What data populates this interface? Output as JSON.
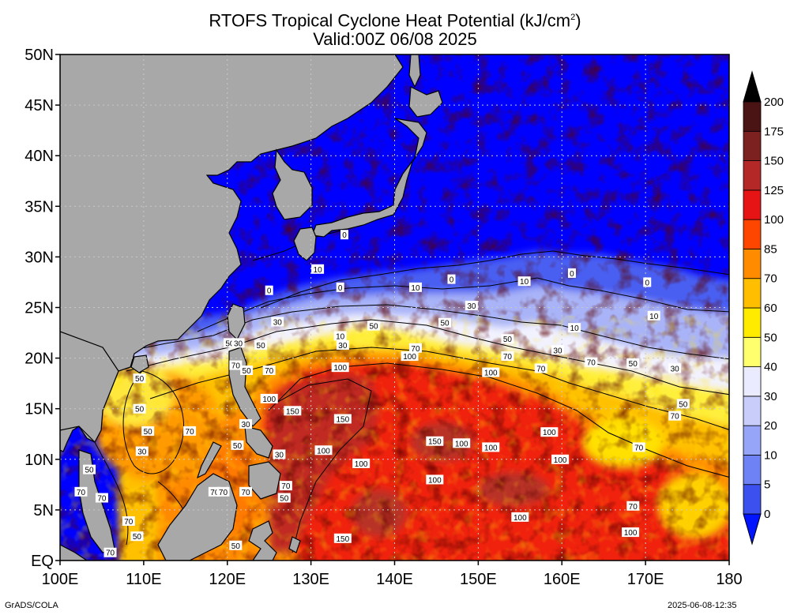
{
  "title": {
    "line1": "RTOFS Tropical Cyclone Heat Potential (kJ/cm",
    "line1_sup": "2",
    "line1_end": ")",
    "line2": "Valid:00Z 06/08 2025"
  },
  "map": {
    "lon_range": [
      100,
      180
    ],
    "lat_range": [
      0,
      50
    ],
    "lon_ticks": [
      "100E",
      "110E",
      "120E",
      "130E",
      "140E",
      "150E",
      "160E",
      "170E",
      "180"
    ],
    "lat_ticks": [
      "EQ",
      "5N",
      "10N",
      "15N",
      "20N",
      "25N",
      "30N",
      "35N",
      "40N",
      "45N",
      "50N"
    ],
    "land_color": "#a8a8a8",
    "grid": "dotted",
    "contour_labels": [
      {
        "text": "0",
        "lon": 134.0,
        "lat": 32.2
      },
      {
        "text": "10",
        "lon": 130.8,
        "lat": 28.8
      },
      {
        "text": "0",
        "lon": 133.5,
        "lat": 27.0
      },
      {
        "text": "10",
        "lon": 142.5,
        "lat": 27.0
      },
      {
        "text": "0",
        "lon": 146.8,
        "lat": 27.8
      },
      {
        "text": "10",
        "lon": 155.5,
        "lat": 27.6
      },
      {
        "text": "0",
        "lon": 161.2,
        "lat": 28.4
      },
      {
        "text": "0",
        "lon": 170.2,
        "lat": 27.5
      },
      {
        "text": "0",
        "lon": 125.0,
        "lat": 26.7
      },
      {
        "text": "30",
        "lon": 149.2,
        "lat": 25.2
      },
      {
        "text": "30",
        "lon": 126.0,
        "lat": 23.6
      },
      {
        "text": "50",
        "lon": 137.5,
        "lat": 23.2
      },
      {
        "text": "50",
        "lon": 146.0,
        "lat": 23.5
      },
      {
        "text": "10",
        "lon": 133.5,
        "lat": 22.2
      },
      {
        "text": "30",
        "lon": 133.8,
        "lat": 21.3
      },
      {
        "text": "10",
        "lon": 161.5,
        "lat": 23.0
      },
      {
        "text": "10",
        "lon": 171.0,
        "lat": 24.2
      },
      {
        "text": "50",
        "lon": 153.5,
        "lat": 21.9
      },
      {
        "text": "70",
        "lon": 142.5,
        "lat": 21.0
      },
      {
        "text": "30",
        "lon": 159.5,
        "lat": 20.8
      },
      {
        "text": "100",
        "lon": 141.8,
        "lat": 20.2
      },
      {
        "text": "70",
        "lon": 153.5,
        "lat": 20.2
      },
      {
        "text": "70",
        "lon": 163.5,
        "lat": 19.6
      },
      {
        "text": "50",
        "lon": 168.5,
        "lat": 19.5
      },
      {
        "text": "30",
        "lon": 173.5,
        "lat": 19.0
      },
      {
        "text": "100",
        "lon": 133.5,
        "lat": 19.1
      },
      {
        "text": "100",
        "lon": 151.5,
        "lat": 18.6
      },
      {
        "text": "70",
        "lon": 157.5,
        "lat": 19.0
      },
      {
        "text": "50",
        "lon": 120.3,
        "lat": 21.5
      },
      {
        "text": "30",
        "lon": 121.3,
        "lat": 21.5
      },
      {
        "text": "50",
        "lon": 124.0,
        "lat": 21.3
      },
      {
        "text": "70",
        "lon": 121.0,
        "lat": 19.3
      },
      {
        "text": "50",
        "lon": 122.3,
        "lat": 18.8
      },
      {
        "text": "70",
        "lon": 125.0,
        "lat": 18.8
      },
      {
        "text": "50",
        "lon": 109.5,
        "lat": 18.0
      },
      {
        "text": "100",
        "lon": 125.0,
        "lat": 16.0
      },
      {
        "text": "150",
        "lon": 127.8,
        "lat": 14.8
      },
      {
        "text": "150",
        "lon": 133.8,
        "lat": 14.0
      },
      {
        "text": "50",
        "lon": 109.5,
        "lat": 15.0
      },
      {
        "text": "50",
        "lon": 110.5,
        "lat": 12.8
      },
      {
        "text": "70",
        "lon": 115.5,
        "lat": 12.8
      },
      {
        "text": "70",
        "lon": 173.5,
        "lat": 14.3
      },
      {
        "text": "50",
        "lon": 174.5,
        "lat": 15.5
      },
      {
        "text": "100",
        "lon": 158.5,
        "lat": 12.7
      },
      {
        "text": "30",
        "lon": 122.2,
        "lat": 13.5
      },
      {
        "text": "150",
        "lon": 144.8,
        "lat": 11.8
      },
      {
        "text": "100",
        "lon": 148.0,
        "lat": 11.6
      },
      {
        "text": "100",
        "lon": 151.5,
        "lat": 11.2
      },
      {
        "text": "70",
        "lon": 169.2,
        "lat": 11.2
      },
      {
        "text": "50",
        "lon": 121.2,
        "lat": 11.4
      },
      {
        "text": "30",
        "lon": 109.8,
        "lat": 10.8
      },
      {
        "text": "100",
        "lon": 131.5,
        "lat": 10.9
      },
      {
        "text": "30",
        "lon": 126.2,
        "lat": 10.5
      },
      {
        "text": "100",
        "lon": 159.8,
        "lat": 10.0
      },
      {
        "text": "100",
        "lon": 136.0,
        "lat": 9.6
      },
      {
        "text": "50",
        "lon": 103.5,
        "lat": 9.0
      },
      {
        "text": "100",
        "lon": 144.8,
        "lat": 8.0
      },
      {
        "text": "70",
        "lon": 102.5,
        "lat": 6.8
      },
      {
        "text": "70",
        "lon": 105.0,
        "lat": 6.2
      },
      {
        "text": "70",
        "lon": 118.5,
        "lat": 6.8
      },
      {
        "text": "70",
        "lon": 119.5,
        "lat": 6.8
      },
      {
        "text": "70",
        "lon": 122.2,
        "lat": 6.8
      },
      {
        "text": "70",
        "lon": 127.0,
        "lat": 7.4
      },
      {
        "text": "50",
        "lon": 126.8,
        "lat": 6.2
      },
      {
        "text": "70",
        "lon": 168.5,
        "lat": 5.4
      },
      {
        "text": "100",
        "lon": 155.0,
        "lat": 4.3
      },
      {
        "text": "70",
        "lon": 108.2,
        "lat": 3.9
      },
      {
        "text": "100",
        "lon": 168.2,
        "lat": 2.8
      },
      {
        "text": "50",
        "lon": 109.2,
        "lat": 2.4
      },
      {
        "text": "150",
        "lon": 133.8,
        "lat": 2.2
      },
      {
        "text": "50",
        "lon": 121.0,
        "lat": 1.5
      },
      {
        "text": "70",
        "lon": 106.0,
        "lat": 0.8
      }
    ]
  },
  "colorbar": {
    "labels": [
      "0",
      "5",
      "10",
      "20",
      "30",
      "40",
      "50",
      "60",
      "70",
      "85",
      "100",
      "125",
      "150",
      "175",
      "200"
    ],
    "colors": [
      "#1e1ee6",
      "#3c50f0",
      "#6e82f5",
      "#96a5f8",
      "#c8cdfa",
      "#ebebff",
      "#ffff6e",
      "#ffeb00",
      "#ffbe00",
      "#ff8c00",
      "#ff4600",
      "#e61414",
      "#b42828",
      "#7d2020",
      "#4a1414",
      "#2a0a0a"
    ],
    "below_color": "#0014ff",
    "above_color": "#000000"
  },
  "credits": {
    "left": "GrADS/COLA",
    "right": "2025-06-08-12:35"
  }
}
